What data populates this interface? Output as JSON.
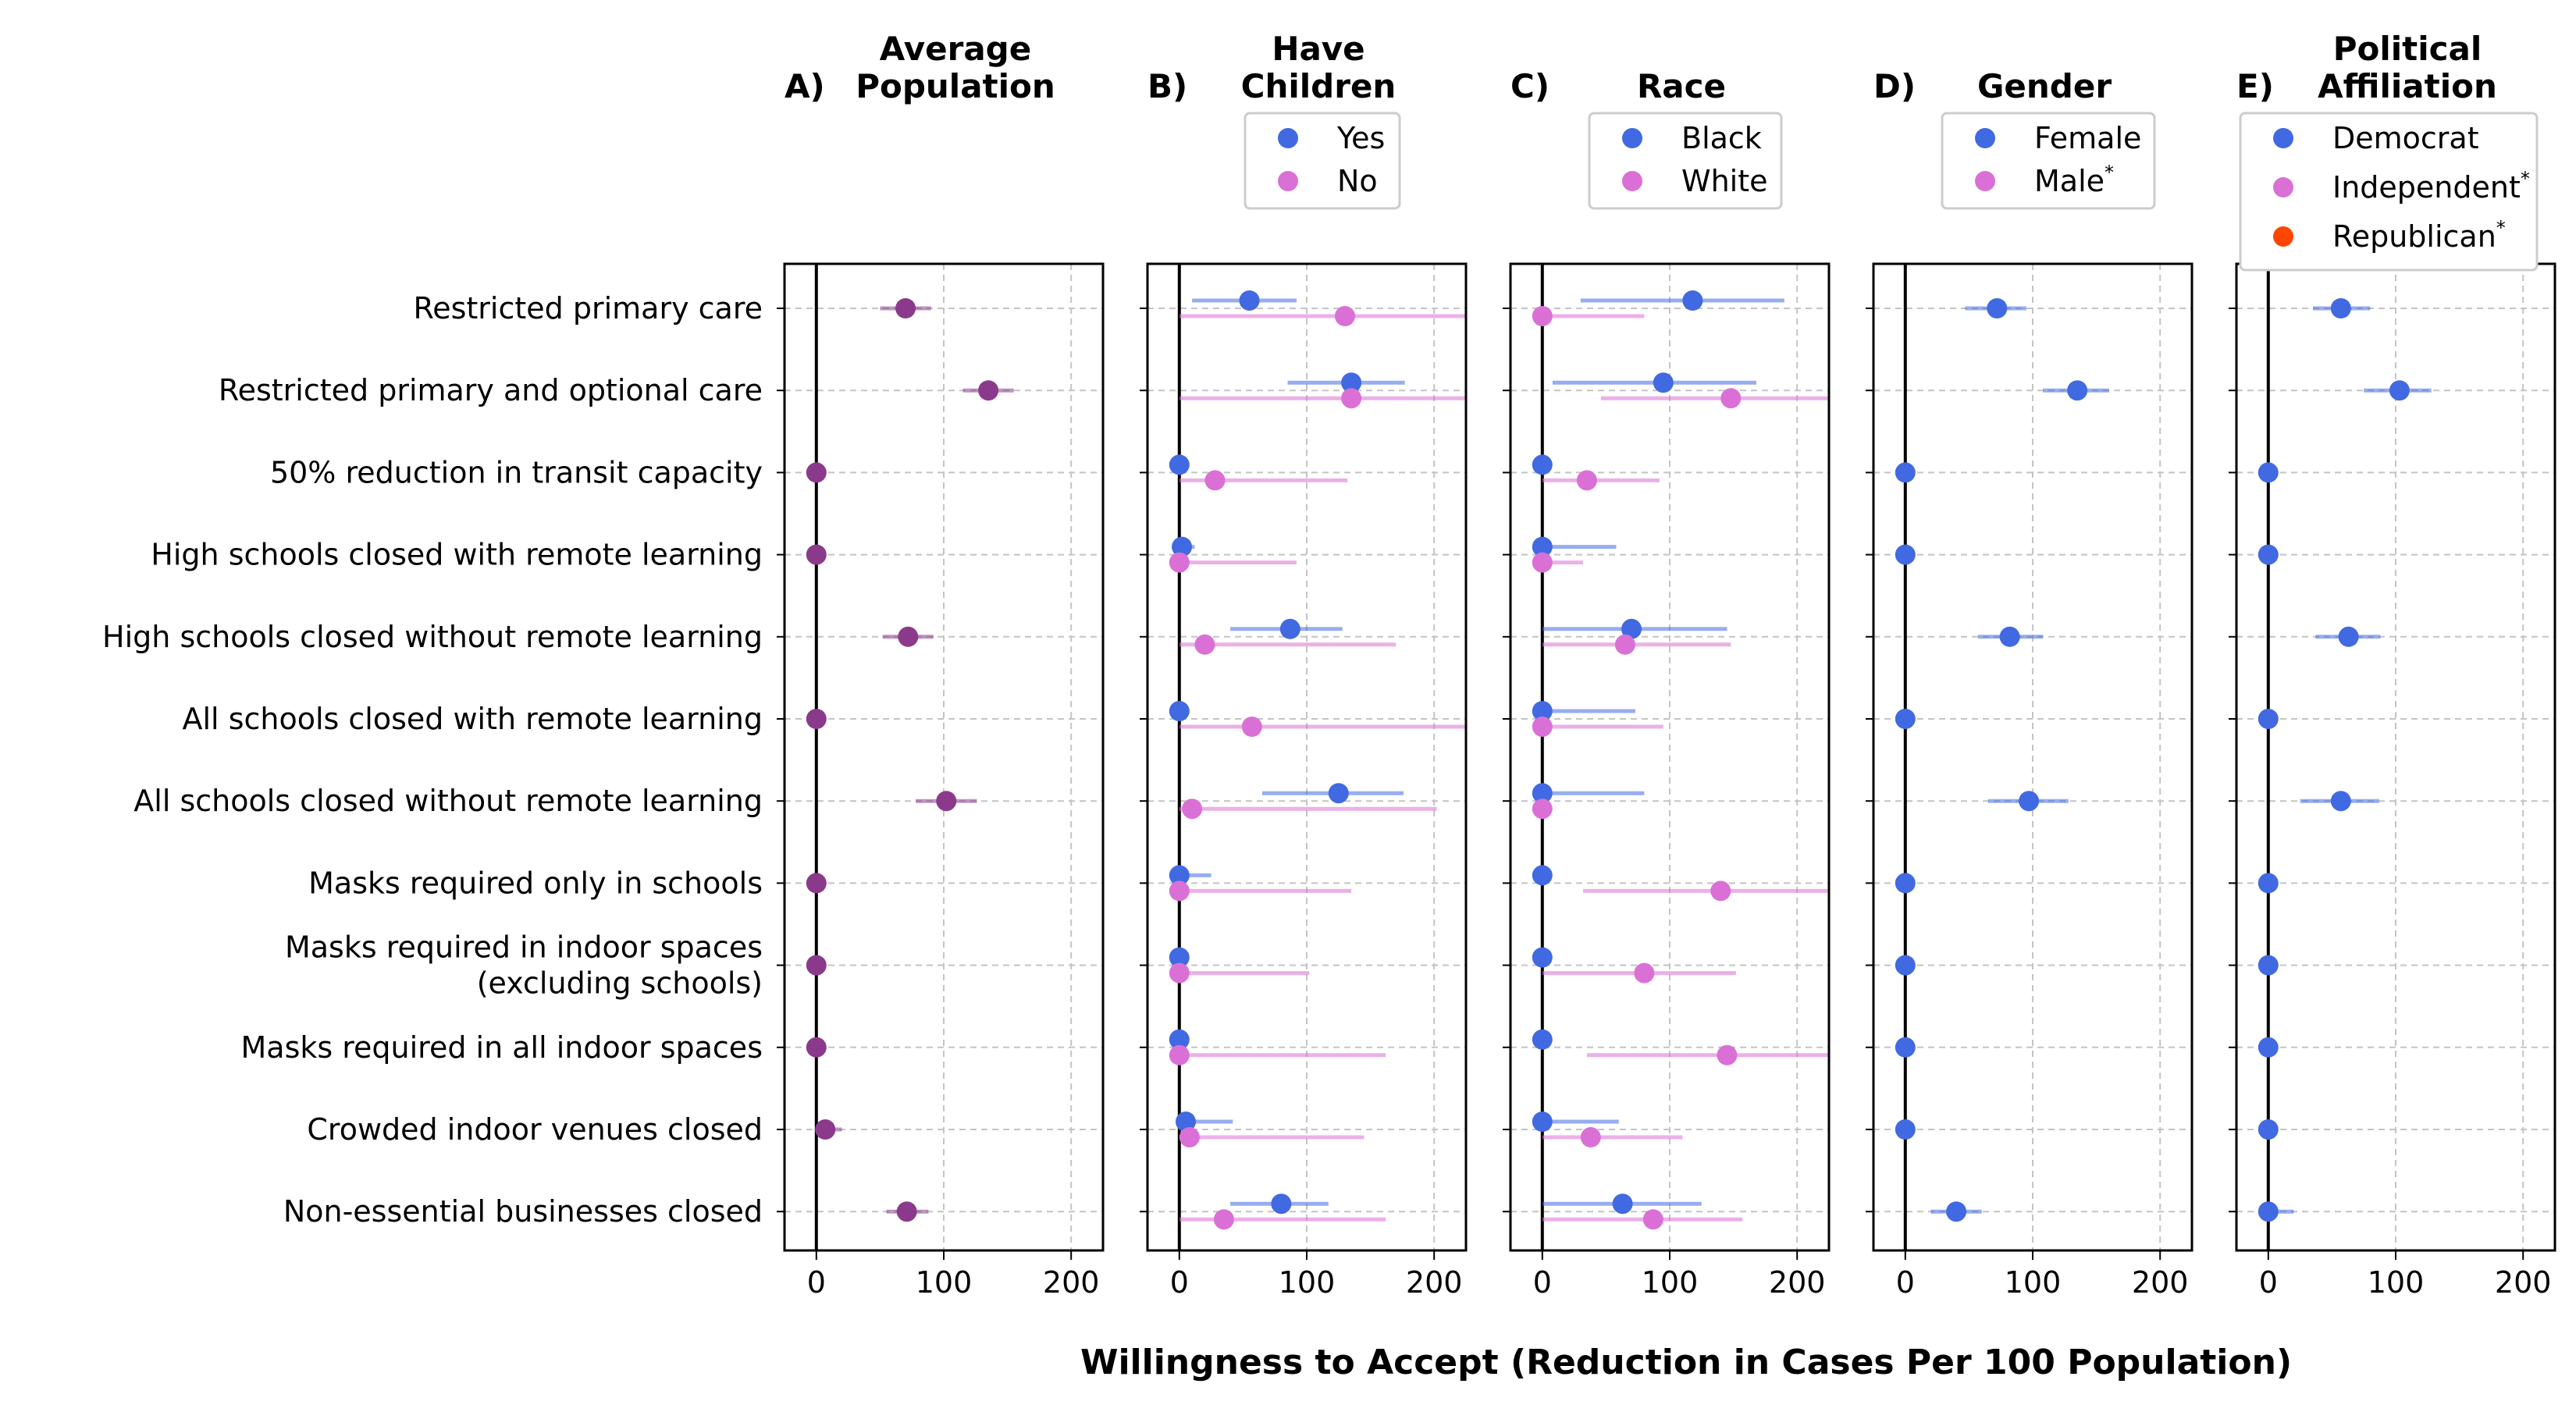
{
  "chart_data": {
    "type": "scatter",
    "xlabel": "Willingness to Accept (Reduction in Cases Per 100 Population)",
    "xlim": [
      -25,
      225
    ],
    "xticks": [
      0,
      100,
      200
    ],
    "grid": "dashed",
    "categories": [
      "Restricted primary care",
      "Restricted primary and optional care",
      "50% reduction in transit capacity",
      "High schools closed with remote learning",
      "High schools closed without remote learning",
      "All schools closed with remote learning",
      "All schools closed without remote learning",
      "Masks required only in schools",
      "Masks required in indoor spaces\n(excluding schools)",
      "Masks required in all indoor spaces",
      "Crowded indoor venues closed",
      "Non-essential businesses closed"
    ],
    "panels": [
      {
        "letter": "A)",
        "title": [
          "Average",
          "Population"
        ],
        "legend": [],
        "series": [
          {
            "name": "",
            "color": "#8b3a8b",
            "values": [
              70,
              135,
              0,
              0,
              72,
              0,
              102,
              0,
              0,
              0,
              7,
              71
            ],
            "ci": [
              [
                50,
                90
              ],
              [
                115,
                155
              ],
              [
                0,
                0
              ],
              [
                0,
                0
              ],
              [
                52,
                92
              ],
              [
                0,
                0
              ],
              [
                78,
                126
              ],
              [
                0,
                0
              ],
              [
                0,
                0
              ],
              [
                0,
                0
              ],
              [
                0,
                20
              ],
              [
                55,
                88
              ]
            ]
          }
        ]
      },
      {
        "letter": "B)",
        "title": [
          "Have",
          "Children"
        ],
        "legend": [
          {
            "label": "Yes",
            "color": "#4169e1"
          },
          {
            "label": "No",
            "color": "#da70d6"
          }
        ],
        "series": [
          {
            "name": "Yes",
            "color": "#4169e1",
            "values": [
              55,
              135,
              0,
              2,
              87,
              0,
              125,
              0,
              0,
              0,
              5,
              80
            ],
            "ci": [
              [
                10,
                92
              ],
              [
                85,
                177
              ],
              [
                0,
                0
              ],
              [
                0,
                12
              ],
              [
                40,
                128
              ],
              [
                0,
                0
              ],
              [
                65,
                176
              ],
              [
                0,
                25
              ],
              [
                0,
                0
              ],
              [
                0,
                0
              ],
              [
                0,
                42
              ],
              [
                40,
                117
              ]
            ]
          },
          {
            "name": "No",
            "color": "#da70d6",
            "values": [
              130,
              135,
              28,
              0,
              20,
              57,
              10,
              0,
              0,
              0,
              8,
              35
            ],
            "ci": [
              [
                0,
                228
              ],
              [
                0,
                228
              ],
              [
                0,
                132
              ],
              [
                0,
                92
              ],
              [
                0,
                170
              ],
              [
                0,
                228
              ],
              [
                0,
                202
              ],
              [
                0,
                135
              ],
              [
                0,
                102
              ],
              [
                0,
                162
              ],
              [
                0,
                145
              ],
              [
                0,
                162
              ]
            ]
          }
        ]
      },
      {
        "letter": "C)",
        "title": [
          "Race"
        ],
        "legend": [
          {
            "label": "Black",
            "color": "#4169e1"
          },
          {
            "label": "White",
            "color": "#da70d6"
          }
        ],
        "series": [
          {
            "name": "Black",
            "color": "#4169e1",
            "values": [
              118,
              95,
              0,
              0,
              70,
              0,
              0,
              0,
              0,
              0,
              0,
              63
            ],
            "ci": [
              [
                30,
                190
              ],
              [
                8,
                168
              ],
              [
                0,
                0
              ],
              [
                0,
                58
              ],
              [
                0,
                145
              ],
              [
                0,
                73
              ],
              [
                0,
                80
              ],
              [
                0,
                0
              ],
              [
                0,
                0
              ],
              [
                0,
                0
              ],
              [
                0,
                60
              ],
              [
                0,
                125
              ]
            ]
          },
          {
            "name": "White",
            "color": "#da70d6",
            "values": [
              0,
              148,
              35,
              0,
              65,
              0,
              0,
              140,
              80,
              145,
              38,
              87
            ],
            "ci": [
              [
                0,
                80
              ],
              [
                46,
                228
              ],
              [
                0,
                92
              ],
              [
                0,
                32
              ],
              [
                0,
                148
              ],
              [
                0,
                95
              ],
              [
                0,
                0
              ],
              [
                32,
                228
              ],
              [
                0,
                152
              ],
              [
                35,
                228
              ],
              [
                0,
                110
              ],
              [
                0,
                157
              ]
            ]
          }
        ]
      },
      {
        "letter": "D)",
        "title": [
          "Gender"
        ],
        "legend": [
          {
            "label": "Female",
            "color": "#4169e1"
          },
          {
            "label": "Male",
            "sup": "*",
            "color": "#da70d6"
          }
        ],
        "series": [
          {
            "name": "Female",
            "color": "#4169e1",
            "values": [
              72,
              135,
              0,
              0,
              82,
              0,
              97,
              0,
              0,
              0,
              0,
              40
            ],
            "ci": [
              [
                47,
                95
              ],
              [
                108,
                160
              ],
              [
                0,
                0
              ],
              [
                0,
                0
              ],
              [
                57,
                108
              ],
              [
                0,
                0
              ],
              [
                65,
                128
              ],
              [
                0,
                0
              ],
              [
                0,
                0
              ],
              [
                0,
                0
              ],
              [
                0,
                0
              ],
              [
                20,
                60
              ]
            ]
          }
        ]
      },
      {
        "letter": "E)",
        "title": [
          "Political",
          "Affiliation"
        ],
        "legend": [
          {
            "label": "Democrat",
            "color": "#4169e1"
          },
          {
            "label": "Independent",
            "sup": "*",
            "color": "#da70d6"
          },
          {
            "label": "Republican",
            "sup": "*",
            "color": "#ff4500"
          }
        ],
        "series": [
          {
            "name": "Democrat",
            "color": "#4169e1",
            "values": [
              57,
              103,
              0,
              0,
              63,
              0,
              57,
              0,
              0,
              0,
              0,
              0
            ],
            "ci": [
              [
                35,
                80
              ],
              [
                75,
                128
              ],
              [
                0,
                0
              ],
              [
                0,
                0
              ],
              [
                37,
                88
              ],
              [
                0,
                0
              ],
              [
                25,
                87
              ],
              [
                0,
                0
              ],
              [
                0,
                0
              ],
              [
                0,
                0
              ],
              [
                0,
                0
              ],
              [
                0,
                20
              ]
            ]
          }
        ]
      }
    ]
  }
}
